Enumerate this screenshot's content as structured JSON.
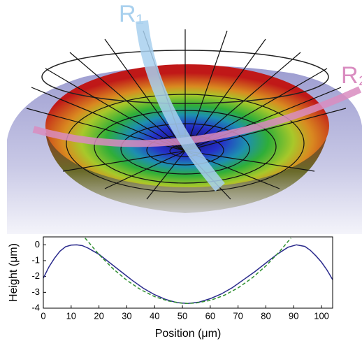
{
  "illustration": {
    "labels": [
      "R₁",
      "R₂"
    ]
  },
  "chart_data": {
    "type": "line",
    "x_label": "Position (μm)",
    "y_label": "Height (μm)",
    "xlim": [
      0,
      104
    ],
    "ylim": [
      -4,
      0.5
    ],
    "xticks": [
      0,
      10,
      20,
      30,
      40,
      50,
      60,
      70,
      80,
      90,
      100
    ],
    "yticks": [
      -4,
      -3,
      -2,
      -1,
      0
    ],
    "series": [
      {
        "color": "#2a2a8c",
        "style": "solid",
        "x": [
          0,
          2,
          4,
          6,
          8,
          10,
          12,
          14,
          16,
          20,
          24,
          28,
          32,
          36,
          40,
          44,
          48,
          52,
          56,
          60,
          64,
          68,
          72,
          76,
          80,
          84,
          88,
          91,
          94,
          96,
          98,
          100,
          102,
          104
        ],
        "values": [
          -2.1,
          -1.4,
          -0.85,
          -0.4,
          -0.12,
          -0.02,
          0,
          -0.05,
          -0.2,
          -0.6,
          -1.15,
          -1.7,
          -2.25,
          -2.75,
          -3.15,
          -3.45,
          -3.65,
          -3.7,
          -3.62,
          -3.4,
          -3.1,
          -2.7,
          -2.2,
          -1.7,
          -1.15,
          -0.6,
          -0.15,
          0,
          -0.1,
          -0.35,
          -0.7,
          -1.1,
          -1.6,
          -2.2
        ]
      },
      {
        "color": "#2f8f2f",
        "style": "dashed",
        "x": [
          15,
          20,
          25,
          30,
          35,
          40,
          45,
          50,
          52,
          55,
          60,
          65,
          70,
          75,
          80,
          85,
          89
        ],
        "values": [
          0.43,
          -0.61,
          -1.5,
          -2.24,
          -2.83,
          -3.27,
          -3.55,
          -3.69,
          -3.7,
          -3.67,
          -3.51,
          -3.19,
          -2.72,
          -2.1,
          -1.33,
          -0.41,
          0.43
        ]
      }
    ]
  }
}
